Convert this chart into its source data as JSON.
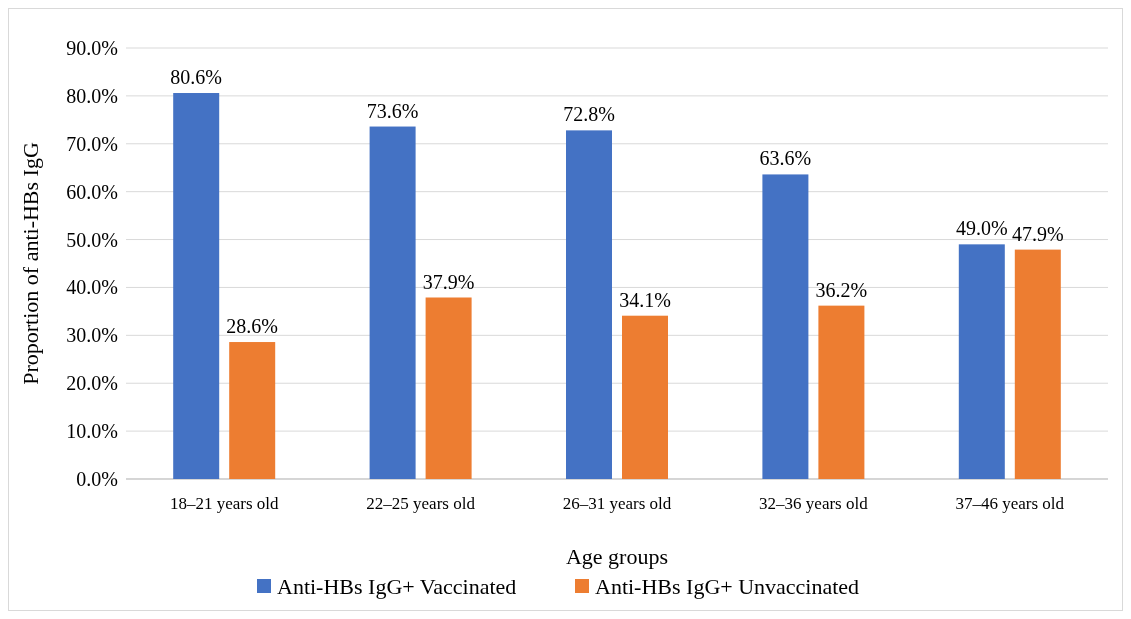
{
  "chart_data": {
    "type": "bar",
    "xlabel": "Age groups",
    "ylabel": "Proportion of anti-HBs IgG",
    "categories": [
      "18–21 years old",
      "22–25 years old",
      "26–31 years old",
      "32–36 years old",
      "37–46 years old"
    ],
    "series": [
      {
        "name": "Anti-HBs IgG+ Vaccinated",
        "color": "#4472c4",
        "values": [
          80.6,
          73.6,
          72.8,
          63.6,
          49.0
        ],
        "value_labels": [
          "80.6%",
          "73.6%",
          "72.8%",
          "63.6%",
          "49.0%"
        ]
      },
      {
        "name": "Anti-HBs IgG+ Unvaccinated",
        "color": "#ed7d31",
        "values": [
          28.6,
          37.9,
          34.1,
          36.2,
          47.9
        ],
        "value_labels": [
          "28.6%",
          "37.9%",
          "34.1%",
          "36.2%",
          "47.9%"
        ]
      }
    ],
    "ylim": [
      0,
      90
    ],
    "yticks": [
      {
        "value": 0,
        "label": "0.0%"
      },
      {
        "value": 10,
        "label": "10.0%"
      },
      {
        "value": 20,
        "label": "20.0%"
      },
      {
        "value": 30,
        "label": "30.0%"
      },
      {
        "value": 40,
        "label": "40.0%"
      },
      {
        "value": 50,
        "label": "50.0%"
      },
      {
        "value": 60,
        "label": "60.0%"
      },
      {
        "value": 70,
        "label": "70.0%"
      },
      {
        "value": 80,
        "label": "80.0%"
      },
      {
        "value": 90,
        "label": "90.0%"
      }
    ],
    "grid": "y",
    "legend": "bottom"
  }
}
